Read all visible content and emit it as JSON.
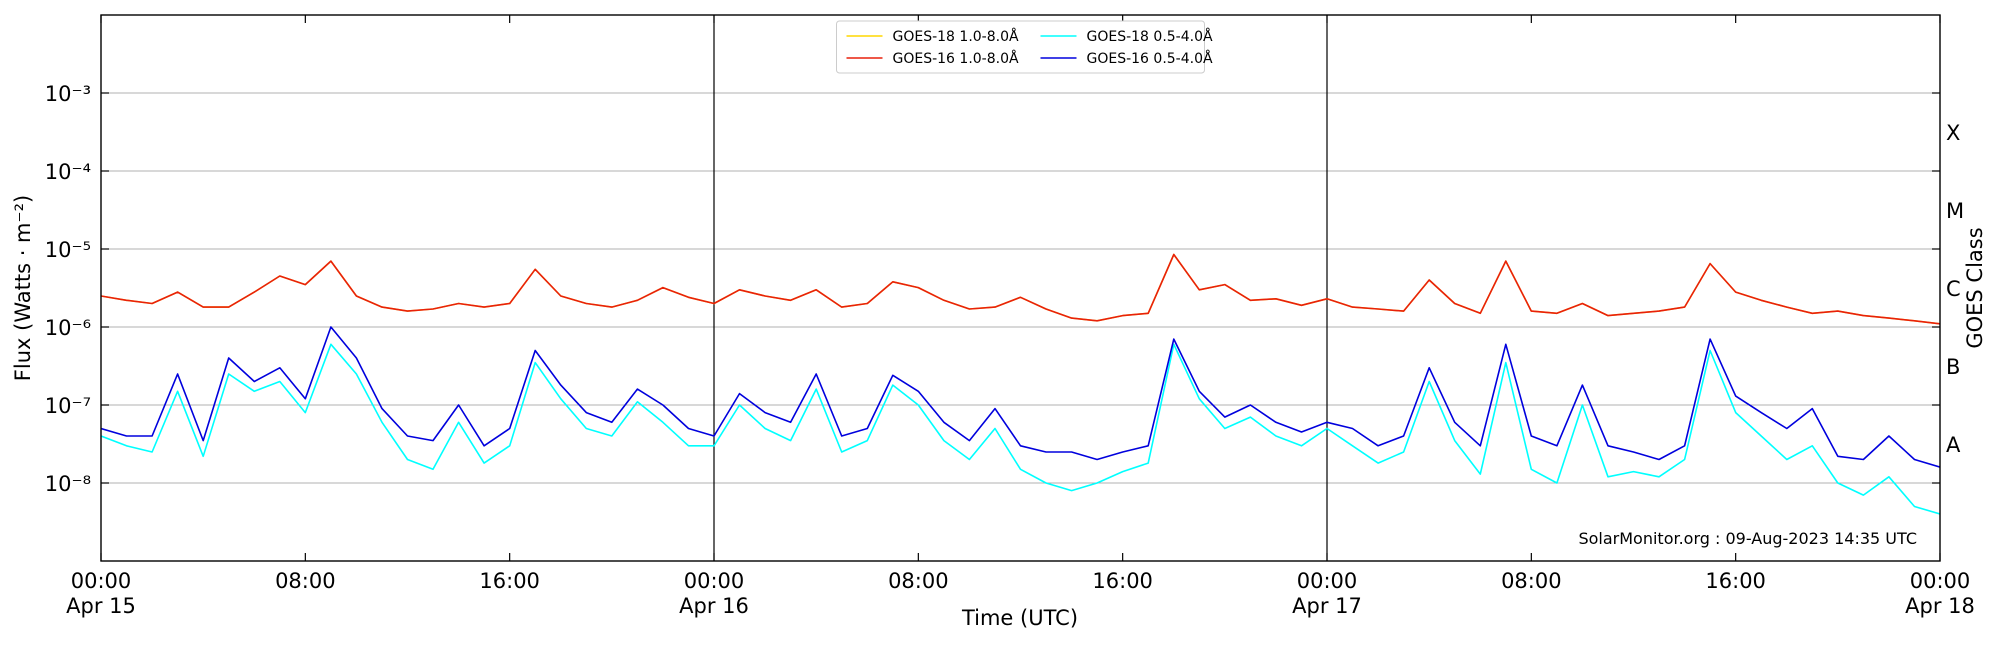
{
  "chart_data": {
    "type": "line",
    "xlabel": "Time (UTC)",
    "ylabel": "Flux (Watts · m⁻²)",
    "y2label": "GOES Class",
    "annotation": "SolarMonitor.org : 09-Aug-2023 14:35 UTC",
    "log_y": true,
    "grid": true,
    "legend": "upper center",
    "xlim": [
      0,
      72
    ],
    "ylim": [
      1e-09,
      0.01
    ],
    "xticks": [
      {
        "value": 0,
        "label": "00:00",
        "date": "Apr 15"
      },
      {
        "value": 8,
        "label": "08:00"
      },
      {
        "value": 16,
        "label": "16:00"
      },
      {
        "value": 24,
        "label": "00:00",
        "date": "Apr 16"
      },
      {
        "value": 32,
        "label": "08:00"
      },
      {
        "value": 40,
        "label": "16:00"
      },
      {
        "value": 48,
        "label": "00:00",
        "date": "Apr 17"
      },
      {
        "value": 56,
        "label": "08:00"
      },
      {
        "value": 64,
        "label": "16:00"
      },
      {
        "value": 72,
        "label": "00:00",
        "date": "Apr 18"
      }
    ],
    "yticks": [
      {
        "value": 1e-08,
        "label": "10⁻⁸"
      },
      {
        "value": 1e-07,
        "label": "10⁻⁷"
      },
      {
        "value": 1e-06,
        "label": "10⁻⁶"
      },
      {
        "value": 1e-05,
        "label": "10⁻⁵"
      },
      {
        "value": 0.0001,
        "label": "10⁻⁴"
      },
      {
        "value": 0.001,
        "label": "10⁻³"
      }
    ],
    "day_lines": [
      24,
      48
    ],
    "goes_classes": [
      {
        "value": 1e-08,
        "label": "A"
      },
      {
        "value": 1e-07,
        "label": "B"
      },
      {
        "value": 1e-06,
        "label": "C"
      },
      {
        "value": 1e-05,
        "label": "M"
      },
      {
        "value": 0.0001,
        "label": "X"
      }
    ],
    "x": [
      0,
      1,
      2,
      3,
      4,
      5,
      6,
      7,
      8,
      9,
      10,
      11,
      12,
      13,
      14,
      15,
      16,
      17,
      18,
      19,
      20,
      21,
      22,
      23,
      24,
      25,
      26,
      27,
      28,
      29,
      30,
      31,
      32,
      33,
      34,
      35,
      36,
      37,
      38,
      39,
      40,
      41,
      42,
      43,
      44,
      45,
      46,
      47,
      48,
      49,
      50,
      51,
      52,
      53,
      54,
      55,
      56,
      57,
      58,
      59,
      60,
      61,
      62,
      63,
      64,
      65,
      66,
      67,
      68,
      69,
      70,
      71,
      72
    ],
    "series": [
      {
        "name": "GOES-18 1.0-8.0Å",
        "color": "#ffd700",
        "values": [
          2.5e-06,
          2.2e-06,
          2e-06,
          2.8e-06,
          1.8e-06,
          1.8e-06,
          2.8e-06,
          4.5e-06,
          3.5e-06,
          7e-06,
          2.5e-06,
          1.8e-06,
          1.6e-06,
          1.7e-06,
          2e-06,
          1.8e-06,
          2e-06,
          5.5e-06,
          2.5e-06,
          2e-06,
          1.8e-06,
          2.2e-06,
          3.2e-06,
          2.4e-06,
          2e-06,
          3e-06,
          2.5e-06,
          2.2e-06,
          3e-06,
          1.8e-06,
          2e-06,
          3.8e-06,
          3.2e-06,
          2.2e-06,
          1.7e-06,
          1.8e-06,
          2.4e-06,
          1.7e-06,
          1.3e-06,
          1.2e-06,
          1.4e-06,
          1.5e-06,
          8.5e-06,
          3e-06,
          3.5e-06,
          2.2e-06,
          2.3e-06,
          1.9e-06,
          2.3e-06,
          1.8e-06,
          1.7e-06,
          1.6e-06,
          4e-06,
          2e-06,
          1.5e-06,
          7e-06,
          1.6e-06,
          1.5e-06,
          2e-06,
          1.4e-06,
          1.5e-06,
          1.6e-06,
          1.8e-06,
          6.5e-06,
          2.8e-06,
          2.2e-06,
          1.8e-06,
          1.5e-06,
          1.6e-06,
          1.4e-06,
          1.3e-06,
          1.2e-06,
          1.1e-06
        ]
      },
      {
        "name": "GOES-16 1.0-8.0Å",
        "color": "#e8200c",
        "values": [
          2.5e-06,
          2.2e-06,
          2e-06,
          2.8e-06,
          1.8e-06,
          1.8e-06,
          2.8e-06,
          4.5e-06,
          3.5e-06,
          7e-06,
          2.5e-06,
          1.8e-06,
          1.6e-06,
          1.7e-06,
          2e-06,
          1.8e-06,
          2e-06,
          5.5e-06,
          2.5e-06,
          2e-06,
          1.8e-06,
          2.2e-06,
          3.2e-06,
          2.4e-06,
          2e-06,
          3e-06,
          2.5e-06,
          2.2e-06,
          3e-06,
          1.8e-06,
          2e-06,
          3.8e-06,
          3.2e-06,
          2.2e-06,
          1.7e-06,
          1.8e-06,
          2.4e-06,
          1.7e-06,
          1.3e-06,
          1.2e-06,
          1.4e-06,
          1.5e-06,
          8.5e-06,
          3e-06,
          3.5e-06,
          2.2e-06,
          2.3e-06,
          1.9e-06,
          2.3e-06,
          1.8e-06,
          1.7e-06,
          1.6e-06,
          4e-06,
          2e-06,
          1.5e-06,
          7e-06,
          1.6e-06,
          1.5e-06,
          2e-06,
          1.4e-06,
          1.5e-06,
          1.6e-06,
          1.8e-06,
          6.5e-06,
          2.8e-06,
          2.2e-06,
          1.8e-06,
          1.5e-06,
          1.6e-06,
          1.4e-06,
          1.3e-06,
          1.2e-06,
          1.1e-06
        ]
      },
      {
        "name": "GOES-18 0.5-4.0Å",
        "color": "#00ffff",
        "values": [
          4e-08,
          3e-08,
          2.5e-08,
          1.5e-07,
          2.2e-08,
          2.5e-07,
          1.5e-07,
          2e-07,
          8e-08,
          6e-07,
          2.5e-07,
          6e-08,
          2e-08,
          1.5e-08,
          6e-08,
          1.8e-08,
          3e-08,
          3.5e-07,
          1.2e-07,
          5e-08,
          4e-08,
          1.1e-07,
          6e-08,
          3e-08,
          3e-08,
          1e-07,
          5e-08,
          3.5e-08,
          1.6e-07,
          2.5e-08,
          3.5e-08,
          1.8e-07,
          1e-07,
          3.5e-08,
          2e-08,
          5e-08,
          1.5e-08,
          1e-08,
          8e-09,
          1e-08,
          1.4e-08,
          1.8e-08,
          6e-07,
          1.2e-07,
          5e-08,
          7e-08,
          4e-08,
          3e-08,
          5e-08,
          3e-08,
          1.8e-08,
          2.5e-08,
          2e-07,
          3.5e-08,
          1.3e-08,
          3.5e-07,
          1.5e-08,
          1e-08,
          1e-07,
          1.2e-08,
          1.4e-08,
          1.2e-08,
          2e-08,
          5e-07,
          8e-08,
          4e-08,
          2e-08,
          3e-08,
          1e-08,
          7e-09,
          1.2e-08,
          5e-09,
          4e-09
        ]
      },
      {
        "name": "GOES-16 0.5-4.0Å",
        "color": "#0000dd",
        "values": [
          5e-08,
          4e-08,
          4e-08,
          2.5e-07,
          3.5e-08,
          4e-07,
          2e-07,
          3e-07,
          1.2e-07,
          1e-06,
          4e-07,
          9e-08,
          4e-08,
          3.5e-08,
          1e-07,
          3e-08,
          5e-08,
          5e-07,
          1.8e-07,
          8e-08,
          6e-08,
          1.6e-07,
          1e-07,
          5e-08,
          4e-08,
          1.4e-07,
          8e-08,
          6e-08,
          2.5e-07,
          4e-08,
          5e-08,
          2.4e-07,
          1.5e-07,
          6e-08,
          3.5e-08,
          9e-08,
          3e-08,
          2.5e-08,
          2.5e-08,
          2e-08,
          2.5e-08,
          3e-08,
          7e-07,
          1.5e-07,
          7e-08,
          1e-07,
          6e-08,
          4.5e-08,
          6e-08,
          5e-08,
          3e-08,
          4e-08,
          3e-07,
          6e-08,
          3e-08,
          6e-07,
          4e-08,
          3e-08,
          1.8e-07,
          3e-08,
          2.5e-08,
          2e-08,
          3e-08,
          7e-07,
          1.3e-07,
          8e-08,
          5e-08,
          9e-08,
          2.2e-08,
          2e-08,
          4e-08,
          2e-08,
          1.6e-08
        ]
      }
    ]
  }
}
